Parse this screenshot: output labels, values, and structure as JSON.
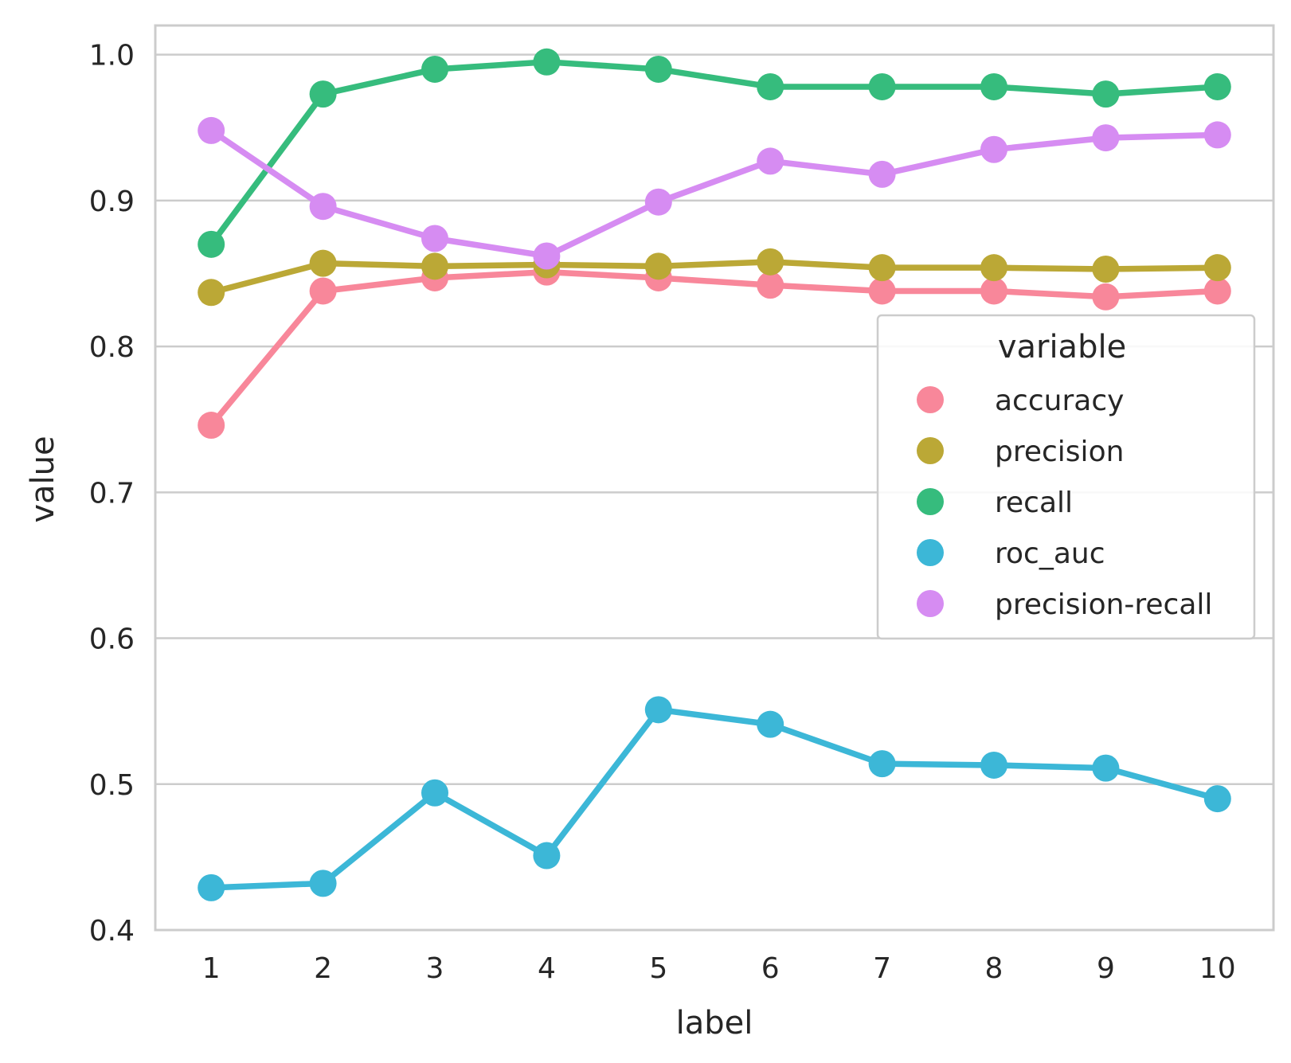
{
  "chart_data": {
    "type": "line",
    "title": "",
    "xlabel": "label",
    "ylabel": "value",
    "categories": [
      "1",
      "2",
      "3",
      "4",
      "5",
      "6",
      "7",
      "8",
      "9",
      "10"
    ],
    "ylim": [
      0.4,
      1.02
    ],
    "yticks": [
      0.4,
      0.5,
      0.6,
      0.7,
      0.8,
      0.9,
      1.0
    ],
    "ytick_labels": [
      "0.4",
      "0.5",
      "0.6",
      "0.7",
      "0.8",
      "0.9",
      "1.0"
    ],
    "grid": "horizontal",
    "legend": {
      "title": "variable",
      "placement": "right"
    },
    "series": [
      {
        "name": "accuracy",
        "color": "#f8879a",
        "values": [
          0.746,
          0.838,
          0.847,
          0.851,
          0.847,
          0.842,
          0.838,
          0.838,
          0.834,
          0.838
        ]
      },
      {
        "name": "precision",
        "color": "#bba836",
        "values": [
          0.837,
          0.857,
          0.855,
          0.856,
          0.855,
          0.858,
          0.854,
          0.854,
          0.853,
          0.854
        ]
      },
      {
        "name": "recall",
        "color": "#36bc7d",
        "values": [
          0.87,
          0.973,
          0.99,
          0.995,
          0.99,
          0.978,
          0.978,
          0.978,
          0.973,
          0.978
        ]
      },
      {
        "name": "roc_auc",
        "color": "#3cb7d7",
        "values": [
          0.429,
          0.432,
          0.494,
          0.451,
          0.551,
          0.541,
          0.514,
          0.513,
          0.511,
          0.49
        ]
      },
      {
        "name": "precision-recall",
        "color": "#d68cf2",
        "values": [
          0.948,
          0.896,
          0.874,
          0.862,
          0.899,
          0.927,
          0.918,
          0.935,
          0.943,
          0.945
        ]
      }
    ]
  }
}
